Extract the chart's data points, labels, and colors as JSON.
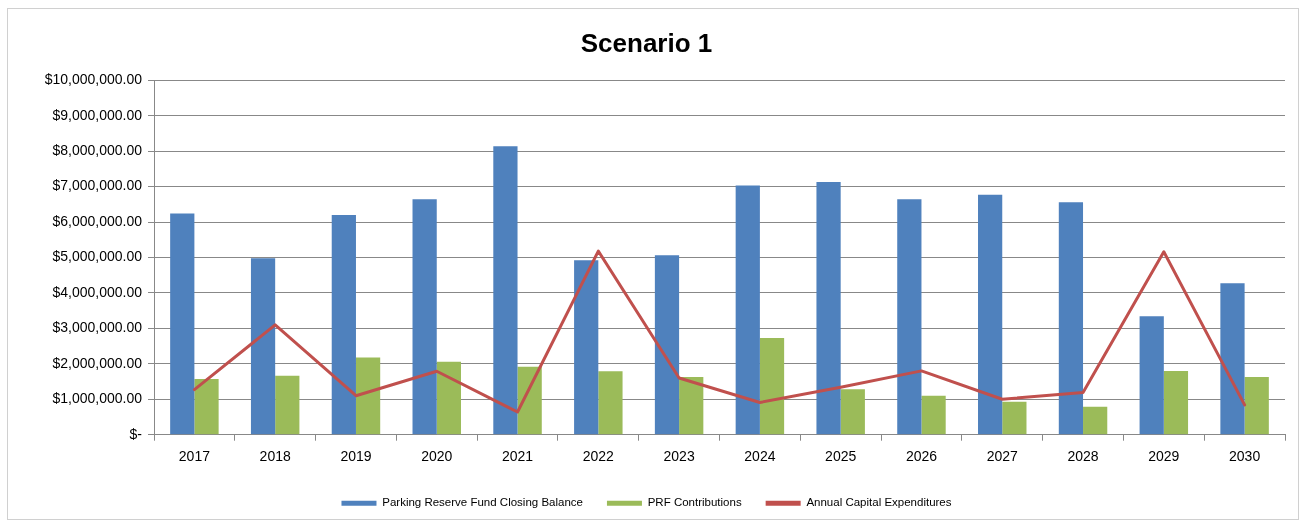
{
  "chart_data": {
    "type": "bar",
    "title": "Scenario 1",
    "categories": [
      "2017",
      "2018",
      "2019",
      "2020",
      "2021",
      "2022",
      "2023",
      "2024",
      "2025",
      "2026",
      "2027",
      "2028",
      "2029",
      "2030"
    ],
    "series": [
      {
        "name": "Parking Reserve Fund Closing Balance",
        "color": "#4f81bd",
        "values": [
          6240000,
          4980000,
          6200000,
          6640000,
          8140000,
          4920000,
          5060000,
          7030000,
          7130000,
          6640000,
          6770000,
          6560000,
          3340000,
          4270000
        ]
      },
      {
        "name": "PRF Contributions",
        "color": "#9bbb59",
        "values": [
          1570000,
          1660000,
          2180000,
          2060000,
          1920000,
          1790000,
          1630000,
          2730000,
          1280000,
          1100000,
          930000,
          790000,
          1800000,
          1630000
        ]
      },
      {
        "name": "Annual Capital Expenditures",
        "type": "line",
        "color": "#c0504d",
        "values": [
          1270000,
          3100000,
          1100000,
          1790000,
          640000,
          5180000,
          1600000,
          910000,
          1340000,
          1800000,
          1000000,
          1190000,
          5160000,
          840000
        ]
      }
    ],
    "ylim": [
      0,
      10000000
    ],
    "yticks": [
      {
        "value": 0,
        "label": "$-"
      },
      {
        "value": 1000000,
        "label": "$1,000,000.00"
      },
      {
        "value": 2000000,
        "label": "$2,000,000.00"
      },
      {
        "value": 3000000,
        "label": "$3,000,000.00"
      },
      {
        "value": 4000000,
        "label": "$4,000,000.00"
      },
      {
        "value": 5000000,
        "label": "$5,000,000.00"
      },
      {
        "value": 6000000,
        "label": "$6,000,000.00"
      },
      {
        "value": 7000000,
        "label": "$7,000,000.00"
      },
      {
        "value": 8000000,
        "label": "$8,000,000.00"
      },
      {
        "value": 9000000,
        "label": "$9,000,000.00"
      },
      {
        "value": 10000000,
        "label": "$10,000,000.00"
      }
    ],
    "grid": "y",
    "legend": "bottom",
    "marker": "none"
  }
}
